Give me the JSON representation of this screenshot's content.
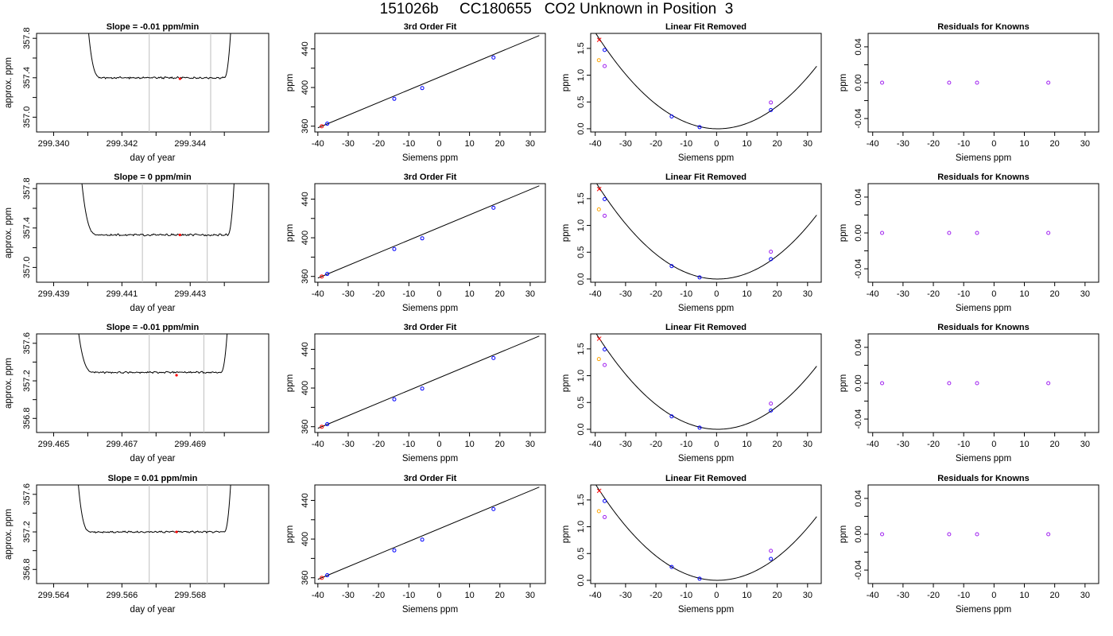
{
  "figure": {
    "title": "151026b     CC180655   CO2 Unknown in Position  3",
    "colors": {
      "known": "#0000ff",
      "unknown": "#ff0000",
      "extra": "#ffa500",
      "residual": "#a020f0",
      "cursor": "#bebebe",
      "line": "#000000"
    }
  },
  "chart_data": [
    {
      "type": "line",
      "title": "Slope =  -0.01  ppm/min",
      "xlabel": "day of year",
      "ylabel": "approx. ppm",
      "xlim": [
        299.3395,
        299.3463
      ],
      "ylim": [
        356.85,
        357.85
      ],
      "xticks": [
        299.34,
        299.341,
        299.342,
        299.343,
        299.344,
        299.345
      ],
      "xtick_labels": [
        "299.340",
        "",
        "299.342",
        "",
        "299.344",
        ""
      ],
      "yticks": [
        357.0,
        357.2,
        357.4,
        357.6,
        357.8
      ],
      "ytick_labels": [
        "357.0",
        "",
        "357.4",
        "",
        "357.8"
      ],
      "trace": {
        "x_start": 299.3407,
        "rise_start": 299.341,
        "plateau_start": 299.3414,
        "plateau_end": 299.345,
        "rise_end": 299.3452,
        "x_end": 299.3454,
        "plateau_value": 357.4,
        "top_value": 357.95
      },
      "vlines": [
        299.3428,
        299.3446
      ],
      "marker": {
        "x": 299.3437,
        "y": 357.39
      }
    },
    {
      "type": "scatter",
      "title": "3rd Order Fit",
      "xlabel": "Siemens ppm",
      "ylabel": "ppm",
      "xlim": [
        -41,
        35
      ],
      "ylim": [
        354,
        456
      ],
      "xticks": [
        -40,
        -30,
        -20,
        -10,
        0,
        10,
        20,
        30
      ],
      "xtick_labels": [
        "-40",
        "-30",
        "-20",
        "-10",
        "0",
        "10",
        "20",
        "30"
      ],
      "yticks": [
        360,
        380,
        400,
        420,
        440
      ],
      "ytick_labels": [
        "360",
        "",
        "400",
        "",
        "440"
      ],
      "knowns": [
        [
          -36.9,
          362.6
        ],
        [
          -14.8,
          388.3
        ],
        [
          -5.6,
          399.4
        ],
        [
          17.9,
          431.0
        ]
      ],
      "unknown": [
        -38.7,
        359.9
      ],
      "fit": {
        "x0": -40,
        "y0": 358.3,
        "x1": 33,
        "y1": 453.8
      }
    },
    {
      "type": "scatter",
      "title": "Linear Fit Removed",
      "xlabel": "Siemens ppm",
      "ylabel": "ppm",
      "xlim": [
        -41.5,
        34.5
      ],
      "ylim": [
        -0.06,
        1.78
      ],
      "xticks": [
        -40,
        -30,
        -20,
        -10,
        0,
        10,
        20,
        30
      ],
      "xtick_labels": [
        "-40",
        "-30",
        "-20",
        "-10",
        "0",
        "10",
        "20",
        "30"
      ],
      "yticks": [
        0.0,
        0.5,
        1.0,
        1.5
      ],
      "ytick_labels": [
        "0.0",
        "0.5",
        "1.0",
        "1.5"
      ],
      "knowns": [
        [
          -36.9,
          1.47
        ],
        [
          -14.8,
          0.23
        ],
        [
          -5.6,
          0.03
        ],
        [
          17.9,
          0.35
        ]
      ],
      "residual_points": [
        [
          -36.9,
          1.17
        ],
        [
          17.9,
          0.49
        ]
      ],
      "extra_point": [
        -38.8,
        1.28
      ],
      "unknown": [
        -38.7,
        1.66
      ],
      "curve_coef": [
        0.0011,
        -0.00093
      ]
    },
    {
      "type": "scatter",
      "title": "Residuals for Knowns",
      "xlabel": "Siemens ppm",
      "ylabel": "ppm",
      "xlim": [
        -41.5,
        34.5
      ],
      "ylim": [
        -0.055,
        0.055
      ],
      "xticks": [
        -40,
        -30,
        -20,
        -10,
        0,
        10,
        20,
        30
      ],
      "xtick_labels": [
        "-40",
        "-30",
        "-20",
        "-10",
        "0",
        "10",
        "20",
        "30"
      ],
      "yticks": [
        -0.04,
        -0.02,
        0.0,
        0.02,
        0.04
      ],
      "ytick_labels": [
        "-0.04",
        "",
        "0.00",
        "",
        "0.04"
      ],
      "knowns": [
        [
          -36.9,
          0.0
        ],
        [
          -14.8,
          0.0
        ],
        [
          -5.6,
          0.0
        ],
        [
          17.9,
          0.0
        ]
      ]
    },
    {
      "type": "line",
      "title": "Slope =  0  ppm/min",
      "xlabel": "day of year",
      "ylabel": "approx. ppm",
      "xlim": [
        299.4385,
        299.4453
      ],
      "ylim": [
        356.85,
        357.85
      ],
      "xticks": [
        299.439,
        299.44,
        299.441,
        299.442,
        299.443,
        299.444
      ],
      "xtick_labels": [
        "299.439",
        "",
        "299.441",
        "",
        "299.443",
        ""
      ],
      "yticks": [
        357.0,
        357.2,
        357.4,
        357.6,
        357.8
      ],
      "ytick_labels": [
        "357.0",
        "",
        "357.4",
        "",
        "357.8"
      ],
      "trace": {
        "x_start": 299.4395,
        "rise_start": 299.4398,
        "plateau_start": 299.4403,
        "plateau_end": 299.4441,
        "rise_end": 299.4443,
        "x_end": 299.4445,
        "plateau_value": 357.33,
        "top_value": 357.95
      },
      "vlines": [
        299.4416,
        299.4435
      ],
      "marker": {
        "x": 299.4427,
        "y": 357.33
      }
    },
    {
      "type": "scatter",
      "title": "3rd Order Fit",
      "xlabel": "Siemens ppm",
      "ylabel": "ppm",
      "xlim": [
        -41,
        35
      ],
      "ylim": [
        354,
        456
      ],
      "xticks": [
        -40,
        -30,
        -20,
        -10,
        0,
        10,
        20,
        30
      ],
      "xtick_labels": [
        "-40",
        "-30",
        "-20",
        "-10",
        "0",
        "10",
        "20",
        "30"
      ],
      "yticks": [
        360,
        380,
        400,
        420,
        440
      ],
      "ytick_labels": [
        "360",
        "",
        "400",
        "",
        "440"
      ],
      "knowns": [
        [
          -36.9,
          362.6
        ],
        [
          -14.8,
          388.3
        ],
        [
          -5.6,
          399.4
        ],
        [
          17.9,
          431.0
        ]
      ],
      "unknown": [
        -38.7,
        359.9
      ],
      "fit": {
        "x0": -40,
        "y0": 358.3,
        "x1": 33,
        "y1": 453.8
      }
    },
    {
      "type": "scatter",
      "title": "Linear Fit Removed",
      "xlabel": "Siemens ppm",
      "ylabel": "ppm",
      "xlim": [
        -41.5,
        34.5
      ],
      "ylim": [
        -0.06,
        1.78
      ],
      "xticks": [
        -40,
        -30,
        -20,
        -10,
        0,
        10,
        20,
        30
      ],
      "xtick_labels": [
        "-40",
        "-30",
        "-20",
        "-10",
        "0",
        "10",
        "20",
        "30"
      ],
      "yticks": [
        0.0,
        0.5,
        1.0,
        1.5
      ],
      "ytick_labels": [
        "0.0",
        "0.5",
        "1.0",
        "1.5"
      ],
      "knowns": [
        [
          -36.9,
          1.49
        ],
        [
          -14.8,
          0.24
        ],
        [
          -5.6,
          0.03
        ],
        [
          17.9,
          0.37
        ]
      ],
      "residual_points": [
        [
          -36.9,
          1.18
        ],
        [
          17.9,
          0.51
        ]
      ],
      "extra_point": [
        -38.8,
        1.3
      ],
      "unknown": [
        -38.7,
        1.68
      ],
      "curve_coef": [
        0.00112,
        -0.00078
      ]
    },
    {
      "type": "scatter",
      "title": "Residuals for Knowns",
      "xlabel": "Siemens ppm",
      "ylabel": "ppm",
      "xlim": [
        -41.5,
        34.5
      ],
      "ylim": [
        -0.055,
        0.055
      ],
      "xticks": [
        -40,
        -30,
        -20,
        -10,
        0,
        10,
        20,
        30
      ],
      "xtick_labels": [
        "-40",
        "-30",
        "-20",
        "-10",
        "0",
        "10",
        "20",
        "30"
      ],
      "yticks": [
        -0.04,
        -0.02,
        0.0,
        0.02,
        0.04
      ],
      "ytick_labels": [
        "-0.04",
        "",
        "0.00",
        "",
        "0.04"
      ],
      "knowns": [
        [
          -36.9,
          0.0
        ],
        [
          -14.8,
          0.0
        ],
        [
          -5.6,
          0.0
        ],
        [
          17.9,
          0.0
        ]
      ]
    },
    {
      "type": "line",
      "title": "Slope =  -0.01  ppm/min",
      "xlabel": "day of year",
      "ylabel": "approx. ppm",
      "xlim": [
        299.4645,
        299.4713
      ],
      "ylim": [
        356.65,
        357.7
      ],
      "xticks": [
        299.465,
        299.466,
        299.467,
        299.468,
        299.469,
        299.47
      ],
      "xtick_labels": [
        "299.465",
        "",
        "299.467",
        "",
        "299.469",
        ""
      ],
      "yticks": [
        356.8,
        357.0,
        357.2,
        357.4,
        357.6
      ],
      "ytick_labels": [
        "356.8",
        "",
        "357.2",
        "",
        "357.6"
      ],
      "trace": {
        "x_start": 299.4654,
        "rise_start": 299.4657,
        "plateau_start": 299.4662,
        "plateau_end": 299.4699,
        "rise_end": 299.4701,
        "x_end": 299.4703,
        "plateau_value": 357.29,
        "top_value": 357.8
      },
      "vlines": [
        299.4678,
        299.4694
      ],
      "marker": {
        "x": 299.4686,
        "y": 357.26
      }
    },
    {
      "type": "scatter",
      "title": "3rd Order Fit",
      "xlabel": "Siemens ppm",
      "ylabel": "ppm",
      "xlim": [
        -41,
        35
      ],
      "ylim": [
        354,
        456
      ],
      "xticks": [
        -40,
        -30,
        -20,
        -10,
        0,
        10,
        20,
        30
      ],
      "xtick_labels": [
        "-40",
        "-30",
        "-20",
        "-10",
        "0",
        "10",
        "20",
        "30"
      ],
      "yticks": [
        360,
        380,
        400,
        420,
        440
      ],
      "ytick_labels": [
        "360",
        "",
        "400",
        "",
        "440"
      ],
      "knowns": [
        [
          -36.9,
          362.6
        ],
        [
          -14.8,
          388.3
        ],
        [
          -5.6,
          399.4
        ],
        [
          17.9,
          431.0
        ]
      ],
      "unknown": [
        -38.7,
        359.9
      ],
      "fit": {
        "x0": -40,
        "y0": 358.3,
        "x1": 33,
        "y1": 453.8
      }
    },
    {
      "type": "scatter",
      "title": "Linear Fit Removed",
      "xlabel": "Siemens ppm",
      "ylabel": "ppm",
      "xlim": [
        -41.5,
        34.5
      ],
      "ylim": [
        -0.06,
        1.78
      ],
      "xticks": [
        -40,
        -30,
        -20,
        -10,
        0,
        10,
        20,
        30
      ],
      "xtick_labels": [
        "-40",
        "-30",
        "-20",
        "-10",
        "0",
        "10",
        "20",
        "30"
      ],
      "yticks": [
        0.0,
        0.5,
        1.0,
        1.5
      ],
      "ytick_labels": [
        "0.0",
        "0.5",
        "1.0",
        "1.5"
      ],
      "knowns": [
        [
          -36.9,
          1.49
        ],
        [
          -14.8,
          0.24
        ],
        [
          -5.6,
          0.03
        ],
        [
          17.9,
          0.35
        ]
      ],
      "residual_points": [
        [
          -36.9,
          1.2
        ],
        [
          17.9,
          0.48
        ]
      ],
      "extra_point": [
        -38.8,
        1.31
      ],
      "unknown": [
        -38.7,
        1.69
      ],
      "curve_coef": [
        0.00111,
        -0.00094
      ]
    },
    {
      "type": "scatter",
      "title": "Residuals for Knowns",
      "xlabel": "Siemens ppm",
      "ylabel": "ppm",
      "xlim": [
        -41.5,
        34.5
      ],
      "ylim": [
        -0.055,
        0.055
      ],
      "xticks": [
        -40,
        -30,
        -20,
        -10,
        0,
        10,
        20,
        30
      ],
      "xtick_labels": [
        "-40",
        "-30",
        "-20",
        "-10",
        "0",
        "10",
        "20",
        "30"
      ],
      "yticks": [
        -0.04,
        -0.02,
        0.0,
        0.02,
        0.04
      ],
      "ytick_labels": [
        "-0.04",
        "",
        "0.00",
        "",
        "0.04"
      ],
      "knowns": [
        [
          -36.9,
          0.0
        ],
        [
          -14.8,
          0.0
        ],
        [
          -5.6,
          0.0
        ],
        [
          17.9,
          0.0
        ]
      ]
    },
    {
      "type": "line",
      "title": "Slope =  0.01  ppm/min",
      "xlabel": "day of year",
      "ylabel": "approx. ppm",
      "xlim": [
        299.5635,
        299.5703
      ],
      "ylim": [
        356.65,
        357.7
      ],
      "xticks": [
        299.564,
        299.565,
        299.566,
        299.567,
        299.568,
        299.569
      ],
      "xtick_labels": [
        "299.564",
        "",
        "299.566",
        "",
        "299.568",
        ""
      ],
      "yticks": [
        356.8,
        357.0,
        357.2,
        357.4,
        357.6
      ],
      "ytick_labels": [
        "356.8",
        "",
        "357.2",
        "",
        "357.6"
      ],
      "trace": {
        "x_start": 299.5644,
        "rise_start": 299.5647,
        "plateau_start": 299.5651,
        "plateau_end": 299.569,
        "rise_end": 299.5692,
        "x_end": 299.5694,
        "plateau_value": 357.2,
        "top_value": 357.8
      },
      "vlines": [
        299.5668,
        299.5685
      ],
      "marker": {
        "x": 299.5676,
        "y": 357.2
      }
    },
    {
      "type": "scatter",
      "title": "3rd Order Fit",
      "xlabel": "Siemens ppm",
      "ylabel": "ppm",
      "xlim": [
        -41,
        35
      ],
      "ylim": [
        354,
        456
      ],
      "xticks": [
        -40,
        -30,
        -20,
        -10,
        0,
        10,
        20,
        30
      ],
      "xtick_labels": [
        "-40",
        "-30",
        "-20",
        "-10",
        "0",
        "10",
        "20",
        "30"
      ],
      "yticks": [
        360,
        380,
        400,
        420,
        440
      ],
      "ytick_labels": [
        "360",
        "",
        "400",
        "",
        "440"
      ],
      "knowns": [
        [
          -36.9,
          362.6
        ],
        [
          -14.8,
          388.3
        ],
        [
          -5.6,
          399.4
        ],
        [
          17.9,
          431.0
        ]
      ],
      "unknown": [
        -38.7,
        359.9
      ],
      "fit": {
        "x0": -40,
        "y0": 358.3,
        "x1": 33,
        "y1": 453.8
      }
    },
    {
      "type": "scatter",
      "title": "Linear Fit Removed",
      "xlabel": "Siemens ppm",
      "ylabel": "ppm",
      "xlim": [
        -41.5,
        34.5
      ],
      "ylim": [
        -0.06,
        1.78
      ],
      "xticks": [
        -40,
        -30,
        -20,
        -10,
        0,
        10,
        20,
        30
      ],
      "xtick_labels": [
        "-40",
        "-30",
        "-20",
        "-10",
        "0",
        "10",
        "20",
        "30"
      ],
      "yticks": [
        0.0,
        0.5,
        1.0,
        1.5
      ],
      "ytick_labels": [
        "0.0",
        "0.5",
        "1.0",
        "1.5"
      ],
      "knowns": [
        [
          -36.9,
          1.48
        ],
        [
          -14.8,
          0.25
        ],
        [
          -5.6,
          0.03
        ],
        [
          17.9,
          0.4
        ]
      ],
      "residual_points": [
        [
          -36.9,
          1.18
        ],
        [
          17.9,
          0.55
        ]
      ],
      "extra_point": [
        -38.8,
        1.29
      ],
      "unknown": [
        -38.7,
        1.67
      ],
      "curve_coef": [
        0.00111,
        -0.0006
      ]
    },
    {
      "type": "scatter",
      "title": "Residuals for Knowns",
      "xlabel": "Siemens ppm",
      "ylabel": "ppm",
      "xlim": [
        -41.5,
        34.5
      ],
      "ylim": [
        -0.055,
        0.055
      ],
      "xticks": [
        -40,
        -30,
        -20,
        -10,
        0,
        10,
        20,
        30
      ],
      "xtick_labels": [
        "-40",
        "-30",
        "-20",
        "-10",
        "0",
        "10",
        "20",
        "30"
      ],
      "yticks": [
        -0.04,
        -0.02,
        0.0,
        0.02,
        0.04
      ],
      "ytick_labels": [
        "-0.04",
        "",
        "0.00",
        "",
        "0.04"
      ],
      "knowns": [
        [
          -36.9,
          0.0
        ],
        [
          -14.8,
          0.0
        ],
        [
          -5.6,
          0.0
        ],
        [
          17.9,
          0.0
        ]
      ]
    }
  ]
}
